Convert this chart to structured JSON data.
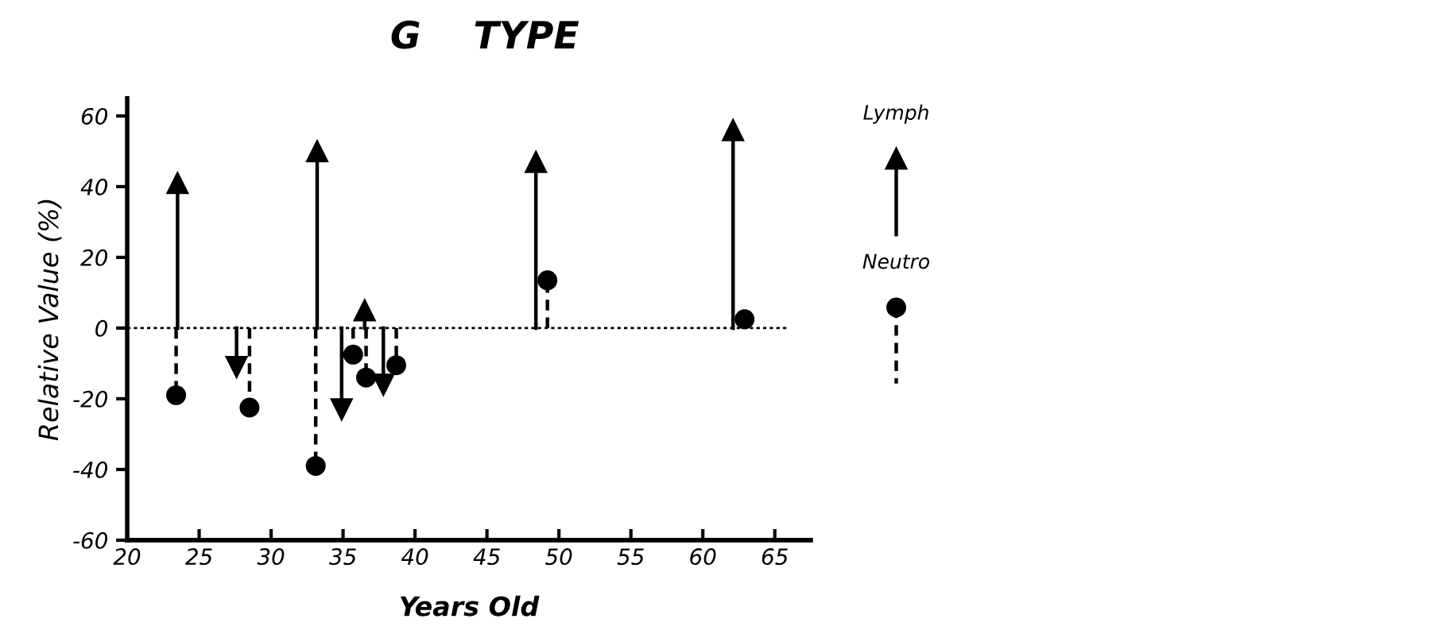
{
  "chart_data": {
    "type": "lollipop",
    "title": "G    TYPE",
    "xlabel": "Years Old",
    "ylabel": "Relative Value (%)",
    "xlim": [
      20,
      67.5
    ],
    "xticks": [
      20,
      25,
      30,
      35,
      40,
      45,
      50,
      55,
      60,
      65
    ],
    "ylim": [
      -60,
      65
    ],
    "yticks": [
      -60,
      -40,
      -20,
      0,
      20,
      40,
      60
    ],
    "grid": false,
    "legend": "right",
    "ref_lines": [
      {
        "axis": "y",
        "value": 0,
        "line_style": "dotted",
        "color": "#000000"
      }
    ],
    "series": [
      {
        "name": "Lymph",
        "color": "#000000",
        "marker": "triangle",
        "line_style": "solid",
        "x": [
          23.5,
          27.6,
          33.2,
          34.9,
          36.5,
          37.8,
          48.4,
          62.1
        ],
        "values": [
          41,
          -11,
          50,
          -23,
          5,
          -16,
          47,
          56
        ]
      },
      {
        "name": "Neutro",
        "color": "#000000",
        "marker": "circle",
        "line_style": "dashed",
        "x": [
          23.4,
          28.5,
          33.1,
          35.7,
          36.6,
          38.7,
          49.2,
          62.9
        ],
        "values": [
          -19,
          -22.5,
          -39,
          -7.5,
          -14,
          -10.5,
          13.5,
          2.5
        ]
      }
    ]
  }
}
